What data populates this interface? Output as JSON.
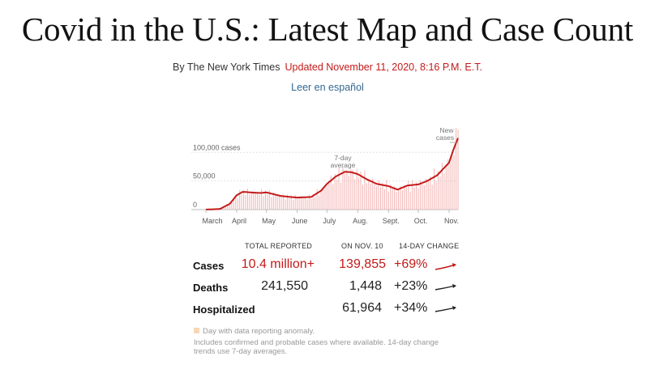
{
  "article": {
    "headline": "Covid in the U.S.: Latest Map and Case Count",
    "byline": "By The New York Times",
    "updated": "Updated November 11, 2020, 8:16 P.M. E.T.",
    "spanish_link": "Leer en español"
  },
  "chart_data": {
    "type": "bar",
    "title": "",
    "x_labels": [
      "March",
      "April",
      "May",
      "June",
      "July",
      "Aug.",
      "Sept.",
      "Oct.",
      "Nov."
    ],
    "y_ticks": [
      0,
      50000,
      100000
    ],
    "y_tick_labels": [
      "0",
      "50,000",
      "100,000 cases"
    ],
    "ylim": [
      0,
      140000
    ],
    "annotations": [
      "7-day average",
      "New cases"
    ],
    "series": [
      {
        "name": "7-day average",
        "x": [
          "Mar 1",
          "Mar 15",
          "Mar 25",
          "Apr 1",
          "Apr 7",
          "Apr 15",
          "Apr 25",
          "May 1",
          "May 15",
          "May 25",
          "Jun 1",
          "Jun 15",
          "Jun 25",
          "Jul 1",
          "Jul 10",
          "Jul 19",
          "Jul 25",
          "Aug 1",
          "Aug 10",
          "Aug 20",
          "Sep 1",
          "Sep 10",
          "Sep 20",
          "Oct 1",
          "Oct 10",
          "Oct 20",
          "Nov 1",
          "Nov 5",
          "Nov 10"
        ],
        "values": [
          0,
          1000,
          10000,
          25000,
          31000,
          30000,
          29000,
          30000,
          24000,
          22000,
          21000,
          22000,
          33000,
          45000,
          58000,
          66000,
          65500,
          62000,
          53000,
          45000,
          41000,
          35000,
          42000,
          44000,
          50000,
          60000,
          82000,
          103000,
          125000
        ]
      },
      {
        "name": "New cases",
        "values_peak_label": 139855
      }
    ]
  },
  "stats": {
    "headers": {
      "total": "TOTAL REPORTED",
      "day": "ON NOV. 10",
      "change": "14-DAY CHANGE"
    },
    "rows": [
      {
        "label": "Cases",
        "total": "10.4 million+",
        "day": "139,855",
        "change": "+69%",
        "color": "#c41a1a"
      },
      {
        "label": "Deaths",
        "total": "241,550",
        "day": "1,448",
        "change": "+23%",
        "color": "#222222"
      },
      {
        "label": "Hospitalized",
        "total": "",
        "day": "61,964",
        "change": "+34%",
        "color": "#222222"
      }
    ]
  },
  "notes": {
    "anomaly": "Day with data reporting anomaly.",
    "line1": "Includes confirmed and probable cases where available. 14-day change",
    "line2": "trends use 7-day averages."
  },
  "colors": {
    "accent": "#c41a1a",
    "bar": "#f4b9b9",
    "link": "#326891"
  }
}
